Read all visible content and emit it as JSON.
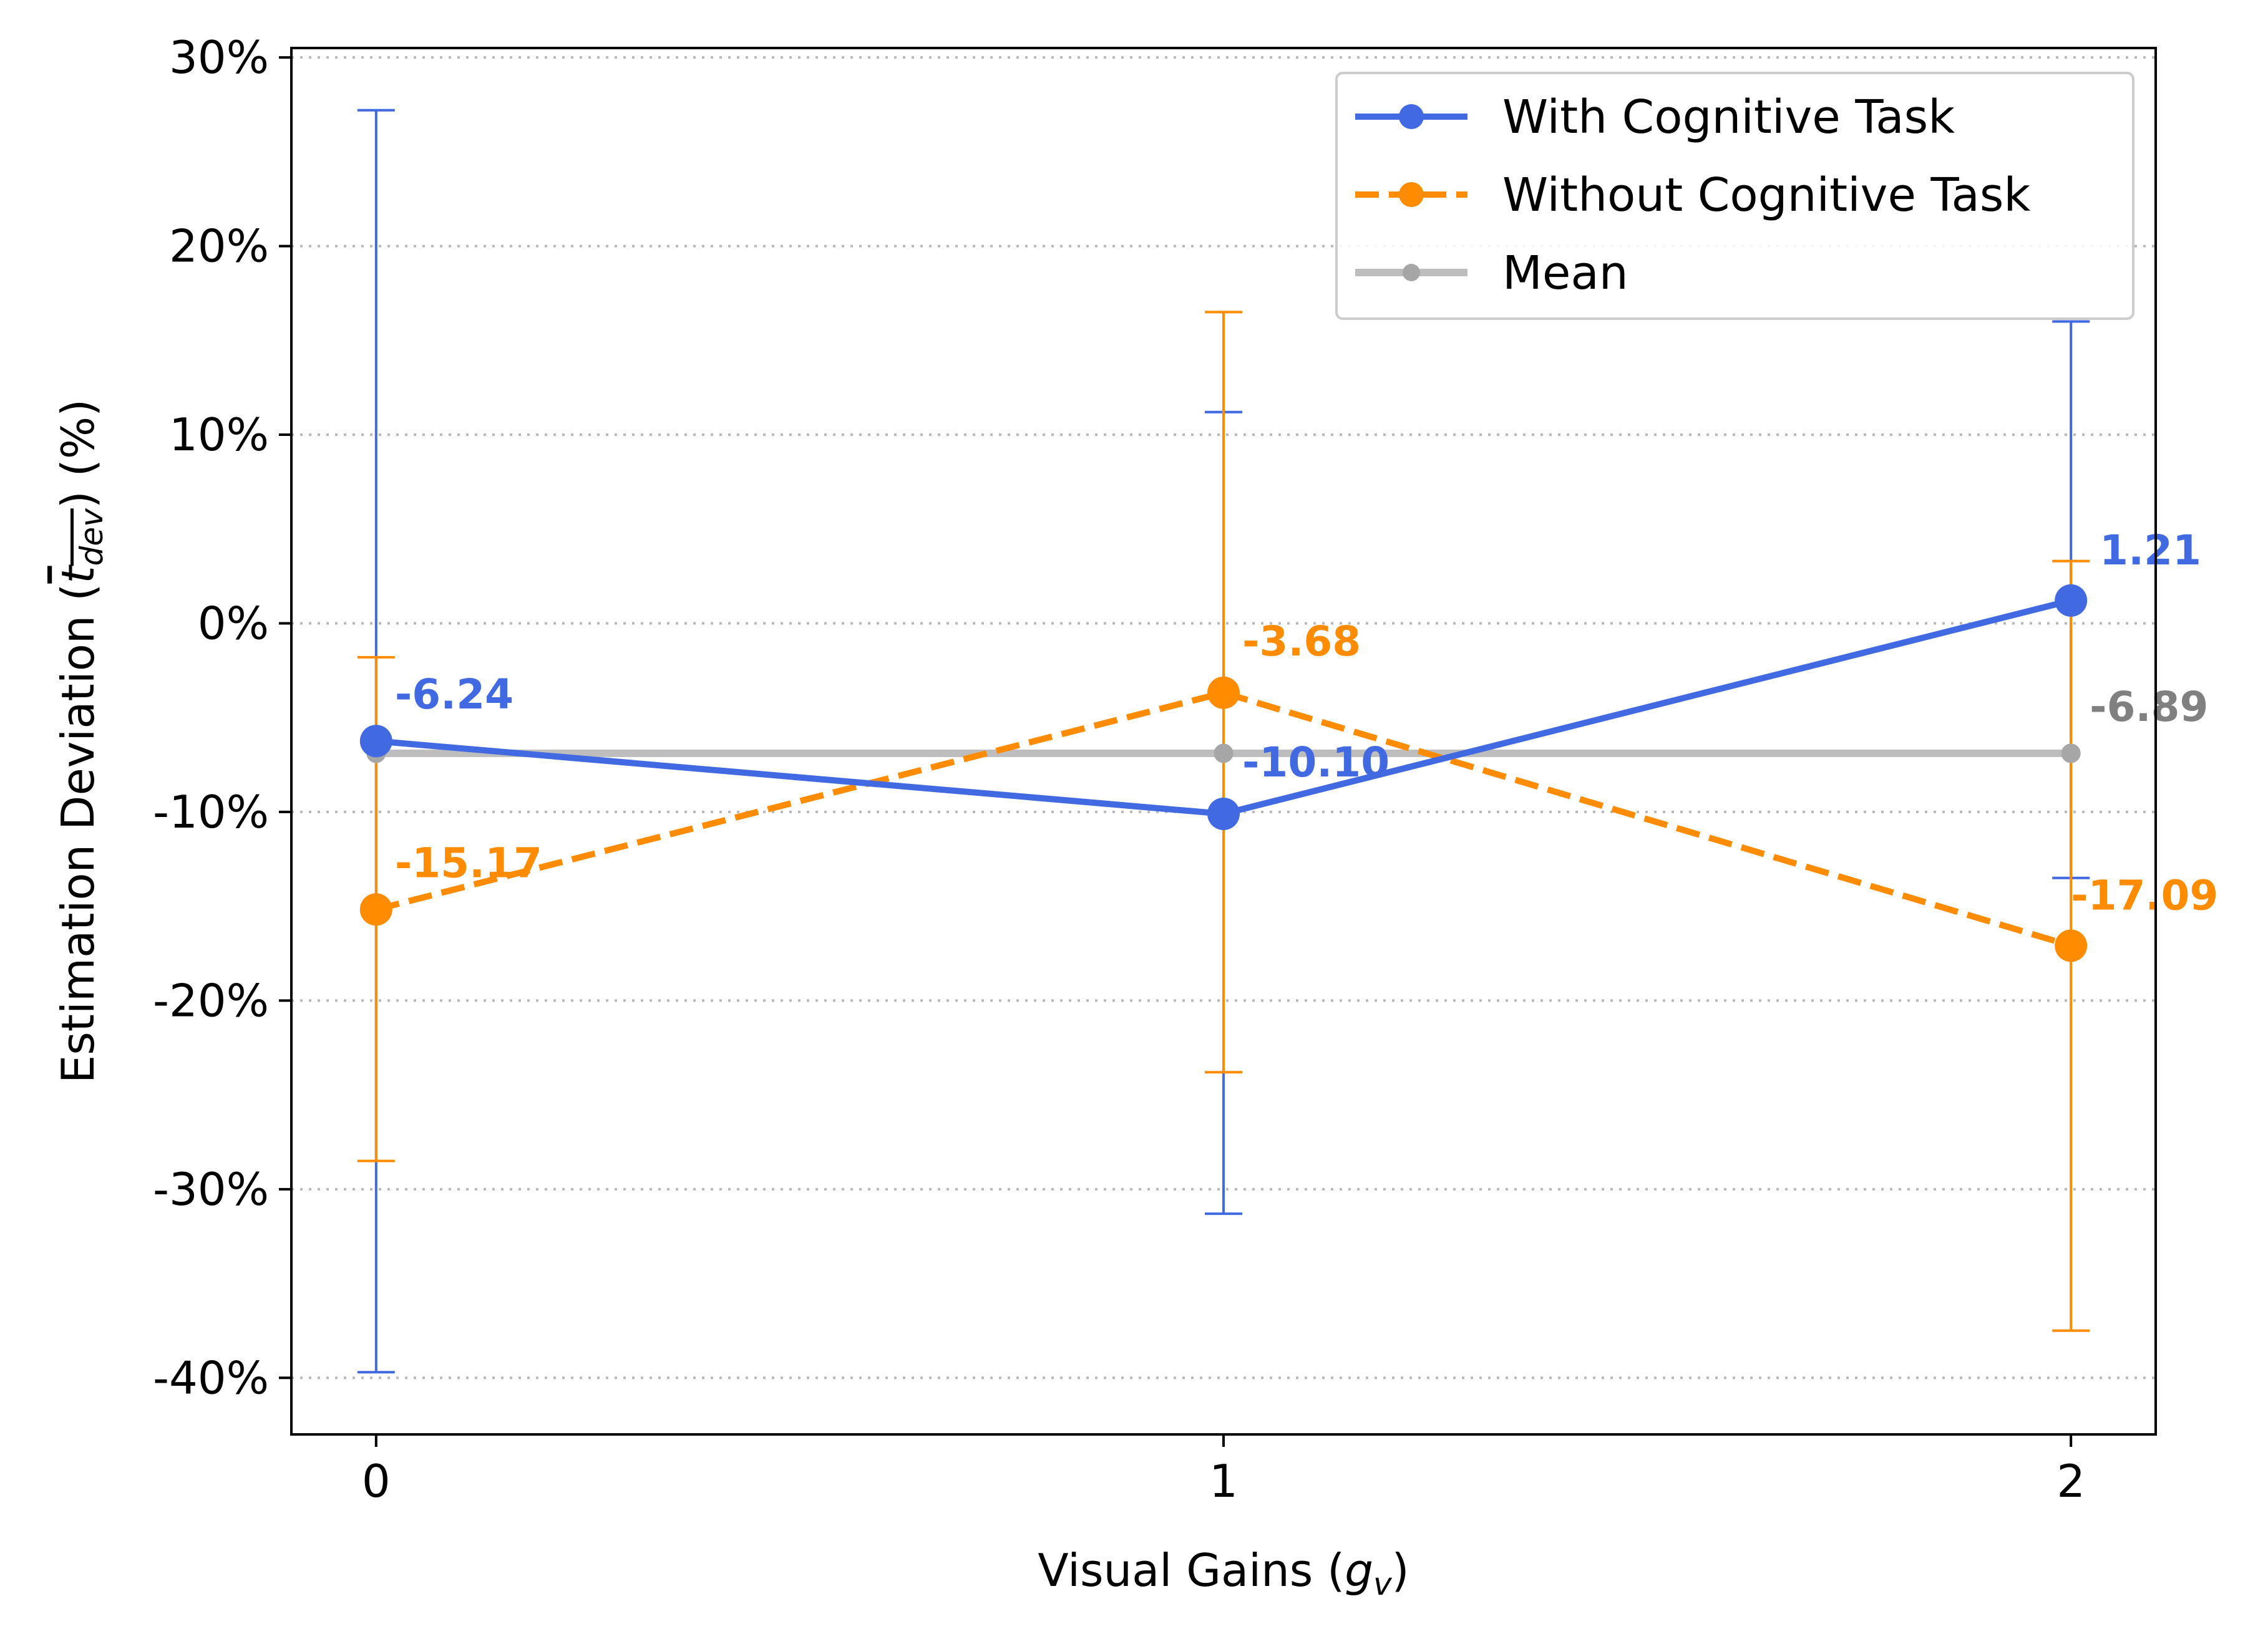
{
  "chart_data": {
    "type": "line",
    "x": [
      0,
      1,
      2
    ],
    "xticks": [
      "0",
      "1",
      "2"
    ],
    "xlim": [
      -0.1,
      2.1
    ],
    "ylim": [
      -43,
      30.5
    ],
    "yticks": [
      30,
      20,
      10,
      0,
      -10,
      -20,
      -30,
      -40
    ],
    "ytick_labels": [
      "30%",
      "20%",
      "10%",
      "0%",
      "-10%",
      "-20%",
      "-30%",
      "-40%"
    ],
    "grid": "horizontal dotted",
    "legend_position": "top-right",
    "xlabel": {
      "main": "Visual Gains (",
      "symbol": "g",
      "sub": "v",
      "close": ")"
    },
    "ylabel": {
      "main": "Estimation Deviation (",
      "symbol": "t",
      "sub": "dev",
      "close": ") (%)"
    },
    "series": [
      {
        "name": "With Cognitive Task",
        "color": "#4169e1",
        "linestyle": "solid",
        "values": [
          -6.24,
          -10.1,
          1.21
        ],
        "error_low": [
          -39.7,
          -31.3,
          -13.5
        ],
        "error_high": [
          27.2,
          11.2,
          16.0
        ],
        "labels": [
          "-6.24",
          "-10.10",
          "1.21"
        ]
      },
      {
        "name": "Without Cognitive Task",
        "color": "#ff8c00",
        "linestyle": "dashed",
        "values": [
          -15.17,
          -3.68,
          -17.09
        ],
        "error_low": [
          -28.5,
          -23.8,
          -37.5
        ],
        "error_high": [
          -1.8,
          16.5,
          3.3
        ],
        "labels": [
          "-15.17",
          "-3.68",
          "-17.09"
        ]
      },
      {
        "name": "Mean",
        "color": "#bdbdbd",
        "linestyle": "solid",
        "values": [
          -6.89,
          -6.89,
          -6.89
        ],
        "labels": [
          "",
          "",
          "-6.89"
        ],
        "label_color": "#808080"
      }
    ]
  }
}
